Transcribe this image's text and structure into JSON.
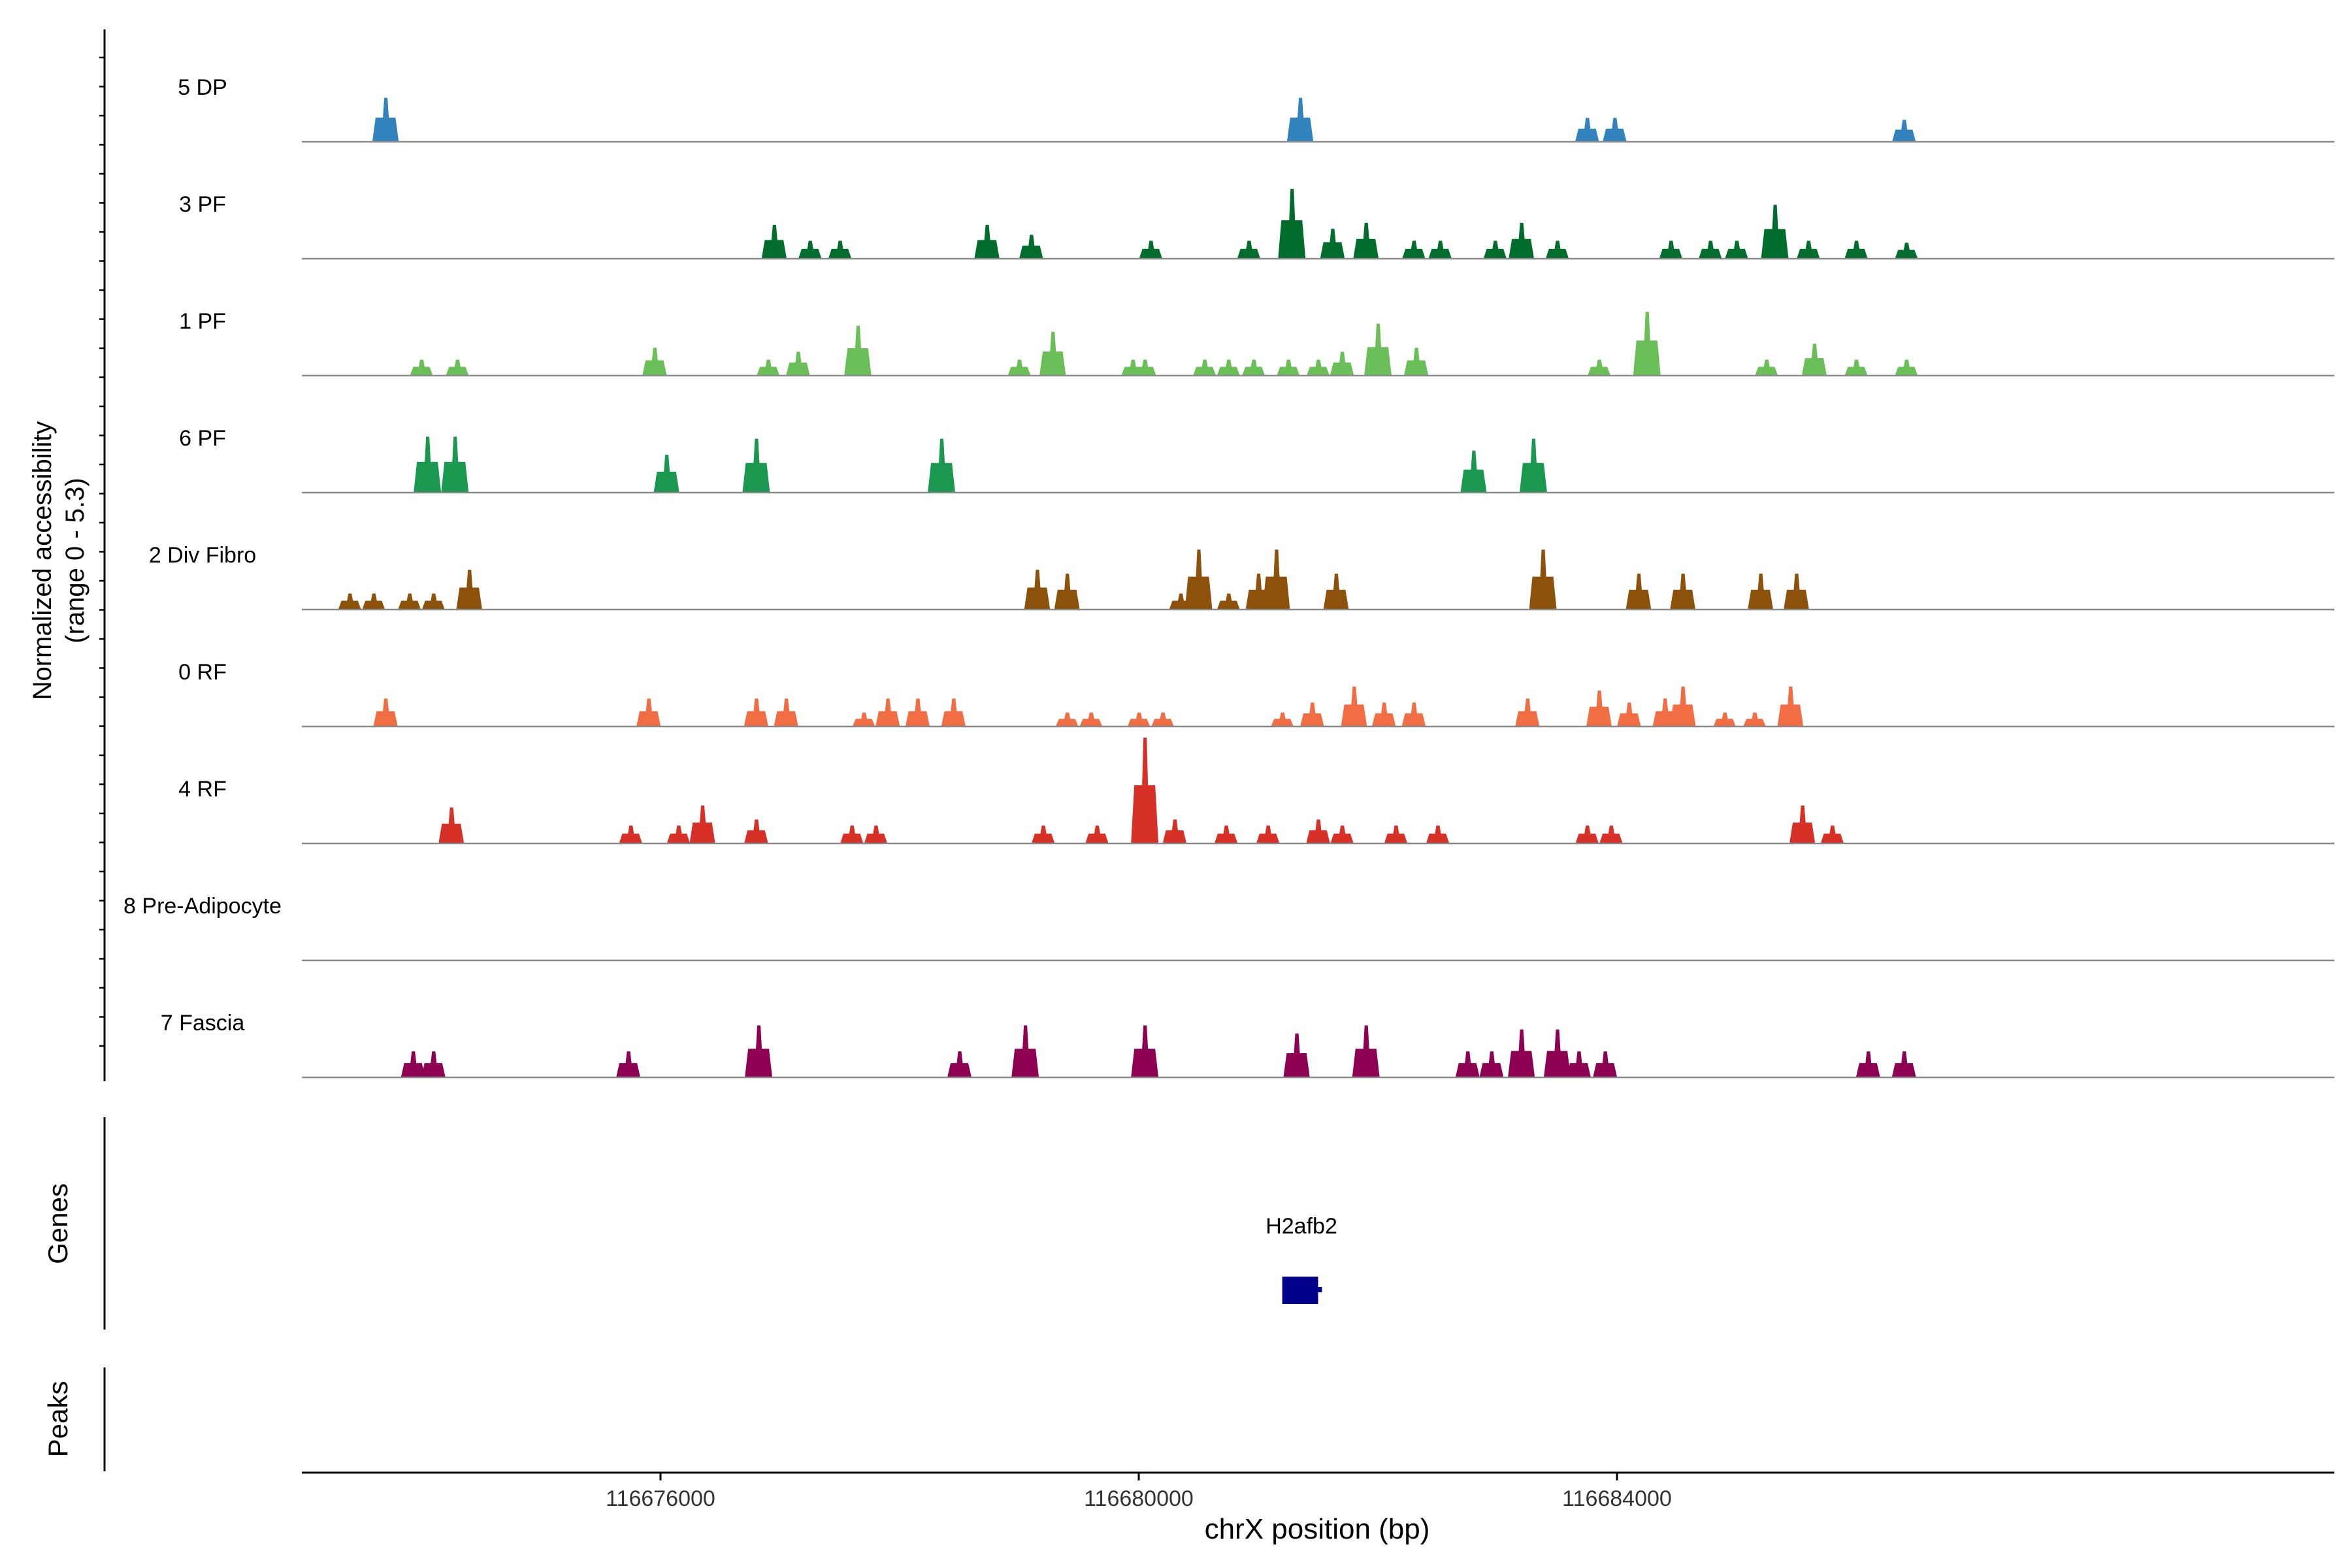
{
  "chart_data": {
    "type": "area",
    "title": "",
    "xlabel": "chrX position (bp)",
    "ylabel_line1": "Normalized accessibility",
    "ylabel_line2": "(range 0 - 5.3)",
    "y_range": [
      0,
      5.3
    ],
    "x_range": [
      116673000,
      116690000
    ],
    "x_ticks": [
      116676000,
      116680000,
      116684000
    ],
    "x_tick_labels": [
      "116676000",
      "116680000",
      "116684000"
    ],
    "panels": {
      "genes_label": "Genes",
      "peaks_label": "Peaks"
    },
    "genes": [
      {
        "name": "H2afb2",
        "start": 116681200,
        "end": 116681500,
        "color": "#00008B"
      }
    ],
    "tracks": [
      {
        "name": "5 DP",
        "color": "#3182BD",
        "peaks": [
          [
            116673700,
            2.2
          ],
          [
            116681350,
            2.2
          ],
          [
            116683750,
            1.2
          ],
          [
            116683980,
            1.2
          ],
          [
            116686400,
            1.1
          ]
        ]
      },
      {
        "name": "3 PF",
        "color": "#006D2C",
        "peaks": [
          [
            116676950,
            1.7
          ],
          [
            116677250,
            0.9
          ],
          [
            116677500,
            0.9
          ],
          [
            116678730,
            1.7
          ],
          [
            116679100,
            1.2
          ],
          [
            116680100,
            0.9
          ],
          [
            116680920,
            0.9
          ],
          [
            116681280,
            3.5
          ],
          [
            116681620,
            1.5
          ],
          [
            116681900,
            1.8
          ],
          [
            116682300,
            0.9
          ],
          [
            116682520,
            0.9
          ],
          [
            116682980,
            0.9
          ],
          [
            116683200,
            1.8
          ],
          [
            116683500,
            0.9
          ],
          [
            116684450,
            0.9
          ],
          [
            116684780,
            0.9
          ],
          [
            116685000,
            0.9
          ],
          [
            116685320,
            2.7
          ],
          [
            116685600,
            0.9
          ],
          [
            116686000,
            0.9
          ],
          [
            116686420,
            0.8
          ]
        ]
      },
      {
        "name": "1 PF",
        "color": "#6BBF59",
        "peaks": [
          [
            116674000,
            0.8
          ],
          [
            116674300,
            0.8
          ],
          [
            116675950,
            1.4
          ],
          [
            116676900,
            0.8
          ],
          [
            116677150,
            1.2
          ],
          [
            116677650,
            2.5
          ],
          [
            116679000,
            0.8
          ],
          [
            116679280,
            2.2
          ],
          [
            116679950,
            0.8
          ],
          [
            116680050,
            0.8
          ],
          [
            116680550,
            0.8
          ],
          [
            116680750,
            0.8
          ],
          [
            116680960,
            0.8
          ],
          [
            116681250,
            0.8
          ],
          [
            116681500,
            0.8
          ],
          [
            116681700,
            1.2
          ],
          [
            116682000,
            2.6
          ],
          [
            116682320,
            1.4
          ],
          [
            116683850,
            0.8
          ],
          [
            116684250,
            3.2
          ],
          [
            116685250,
            0.8
          ],
          [
            116685650,
            1.6
          ],
          [
            116686000,
            0.8
          ],
          [
            116686420,
            0.8
          ]
        ]
      },
      {
        "name": "6 PF",
        "color": "#1A9850",
        "peaks": [
          [
            116674050,
            2.8
          ],
          [
            116674280,
            2.8
          ],
          [
            116676050,
            1.9
          ],
          [
            116676800,
            2.7
          ],
          [
            116678350,
            2.7
          ],
          [
            116682800,
            2.1
          ],
          [
            116683300,
            2.7
          ]
        ]
      },
      {
        "name": "2 Div Fibro",
        "color": "#8C510A",
        "peaks": [
          [
            116673400,
            0.8
          ],
          [
            116673600,
            0.8
          ],
          [
            116673900,
            0.8
          ],
          [
            116674100,
            0.8
          ],
          [
            116674400,
            2.0
          ],
          [
            116679150,
            2.0
          ],
          [
            116679400,
            1.8
          ],
          [
            116680350,
            0.8
          ],
          [
            116680500,
            3.0
          ],
          [
            116680750,
            0.8
          ],
          [
            116681000,
            1.8
          ],
          [
            116681150,
            3.0
          ],
          [
            116681650,
            1.8
          ],
          [
            116683380,
            3.0
          ],
          [
            116684180,
            1.8
          ],
          [
            116684550,
            1.8
          ],
          [
            116685200,
            1.8
          ],
          [
            116685500,
            1.8
          ]
        ]
      },
      {
        "name": "0 RF",
        "color": "#F16D43",
        "peaks": [
          [
            116673700,
            1.4
          ],
          [
            116675900,
            1.4
          ],
          [
            116676800,
            1.4
          ],
          [
            116677050,
            1.4
          ],
          [
            116677700,
            0.7
          ],
          [
            116677900,
            1.4
          ],
          [
            116678150,
            1.4
          ],
          [
            116678450,
            1.4
          ],
          [
            116679400,
            0.7
          ],
          [
            116679600,
            0.7
          ],
          [
            116680000,
            0.7
          ],
          [
            116680200,
            0.7
          ],
          [
            116681200,
            0.7
          ],
          [
            116681450,
            1.2
          ],
          [
            116681800,
            2.0
          ],
          [
            116682050,
            1.2
          ],
          [
            116682300,
            1.2
          ],
          [
            116683250,
            1.4
          ],
          [
            116683850,
            1.8
          ],
          [
            116684100,
            1.2
          ],
          [
            116684400,
            1.4
          ],
          [
            116684550,
            2.0
          ],
          [
            116684900,
            0.7
          ],
          [
            116685150,
            0.7
          ],
          [
            116685450,
            2.0
          ]
        ]
      },
      {
        "name": "4 RF",
        "color": "#D73027",
        "peaks": [
          [
            116674250,
            1.8
          ],
          [
            116675750,
            0.9
          ],
          [
            116676150,
            0.9
          ],
          [
            116676350,
            1.9
          ],
          [
            116676800,
            1.2
          ],
          [
            116677600,
            0.9
          ],
          [
            116677800,
            0.9
          ],
          [
            116679200,
            0.9
          ],
          [
            116679650,
            0.9
          ],
          [
            116680050,
            5.3
          ],
          [
            116680300,
            1.2
          ],
          [
            116680730,
            0.9
          ],
          [
            116681080,
            0.9
          ],
          [
            116681500,
            1.2
          ],
          [
            116681700,
            0.9
          ],
          [
            116682150,
            0.9
          ],
          [
            116682500,
            0.9
          ],
          [
            116683750,
            0.9
          ],
          [
            116683950,
            0.9
          ],
          [
            116685550,
            1.9
          ],
          [
            116685800,
            0.9
          ]
        ]
      },
      {
        "name": "8 Pre-Adipocyte",
        "color": "#6A3D9A",
        "peaks": []
      },
      {
        "name": "7 Fascia",
        "color": "#8E0152",
        "peaks": [
          [
            116673930,
            1.3
          ],
          [
            116674100,
            1.3
          ],
          [
            116675730,
            1.3
          ],
          [
            116676820,
            2.6
          ],
          [
            116678500,
            1.3
          ],
          [
            116679050,
            2.6
          ],
          [
            116680050,
            2.6
          ],
          [
            116681320,
            2.2
          ],
          [
            116681900,
            2.6
          ],
          [
            116682750,
            1.3
          ],
          [
            116682950,
            1.3
          ],
          [
            116683200,
            2.4
          ],
          [
            116683500,
            2.4
          ],
          [
            116683680,
            1.3
          ],
          [
            116683900,
            1.3
          ],
          [
            116686100,
            1.3
          ],
          [
            116686400,
            1.3
          ]
        ]
      }
    ]
  }
}
